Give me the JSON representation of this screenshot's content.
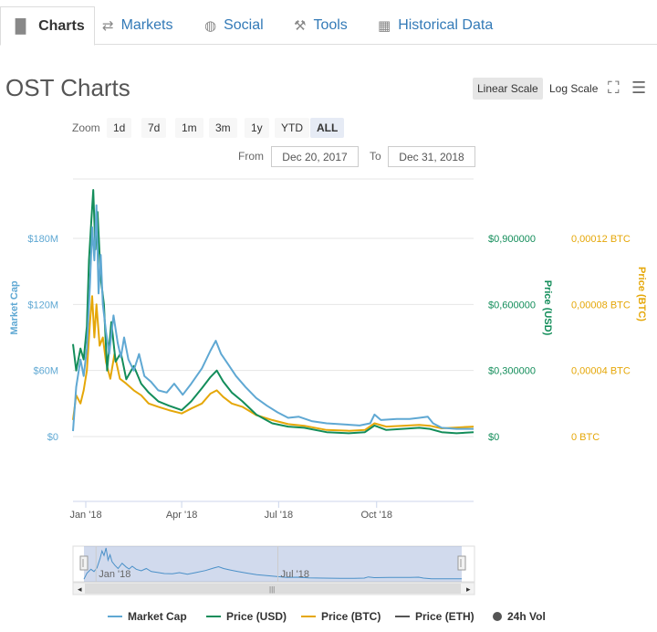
{
  "tabs": [
    {
      "label": "Charts",
      "icon": "bar-chart-icon"
    },
    {
      "label": "Markets",
      "icon": "exchange-icon"
    },
    {
      "label": "Social",
      "icon": "globe-icon"
    },
    {
      "label": "Tools",
      "icon": "wrench-icon"
    },
    {
      "label": "Historical Data",
      "icon": "calendar-icon"
    }
  ],
  "page_title": "OST Charts",
  "scale": {
    "linear": "Linear Scale",
    "log": "Log Scale",
    "selected": "linear"
  },
  "zoom": {
    "label": "Zoom",
    "options": [
      "1d",
      "7d",
      "1m",
      "3m",
      "1y",
      "YTD",
      "ALL"
    ],
    "selected": "ALL"
  },
  "range": {
    "from_label": "From",
    "from": "Dec 20, 2017",
    "to_label": "To",
    "to": "Dec 31, 2018"
  },
  "colors": {
    "market_cap": "#5fa8d3",
    "price_usd": "#138d5a",
    "price_btc": "#e5a708",
    "price_eth": "#555555",
    "vol": "#555555"
  },
  "chart_data": {
    "type": "line",
    "x_start": "2017-12-20",
    "x_end": "2018-12-31",
    "x_ticks": [
      "Jan '18",
      "Apr '18",
      "Jul '18",
      "Oct '18"
    ],
    "axes": {
      "market_cap": {
        "label": "Market Cap",
        "ticks": [
          "$0",
          "$60M",
          "$120M",
          "$180M"
        ],
        "range": [
          0,
          180
        ]
      },
      "price_usd": {
        "label": "Price (USD)",
        "ticks": [
          "$0",
          "$0,300000",
          "$0,600000",
          "$0,900000"
        ],
        "range": [
          0,
          0.9
        ]
      },
      "price_btc": {
        "label": "Price (BTC)",
        "ticks": [
          "0 BTC",
          "0,00004 BTC",
          "0,00008 BTC",
          "0,00012 BTC"
        ],
        "range": [
          0,
          0.00012
        ]
      }
    },
    "grid": true,
    "series": [
      {
        "name": "Market Cap",
        "axis": "market_cap",
        "points": [
          [
            "2017-12-20",
            5
          ],
          [
            "2017-12-23",
            45
          ],
          [
            "2017-12-27",
            70
          ],
          [
            "2017-12-30",
            55
          ],
          [
            "2018-01-02",
            80
          ],
          [
            "2018-01-05",
            140
          ],
          [
            "2018-01-07",
            190
          ],
          [
            "2018-01-09",
            160
          ],
          [
            "2018-01-11",
            210
          ],
          [
            "2018-01-13",
            130
          ],
          [
            "2018-01-15",
            165
          ],
          [
            "2018-01-17",
            120
          ],
          [
            "2018-01-20",
            95
          ],
          [
            "2018-01-23",
            75
          ],
          [
            "2018-01-27",
            110
          ],
          [
            "2018-01-31",
            85
          ],
          [
            "2018-02-03",
            72
          ],
          [
            "2018-02-06",
            90
          ],
          [
            "2018-02-10",
            70
          ],
          [
            "2018-02-15",
            60
          ],
          [
            "2018-02-20",
            75
          ],
          [
            "2018-02-25",
            55
          ],
          [
            "2018-03-03",
            50
          ],
          [
            "2018-03-10",
            42
          ],
          [
            "2018-03-18",
            40
          ],
          [
            "2018-03-25",
            48
          ],
          [
            "2018-04-02",
            38
          ],
          [
            "2018-04-10",
            48
          ],
          [
            "2018-04-20",
            62
          ],
          [
            "2018-04-28",
            78
          ],
          [
            "2018-05-03",
            87
          ],
          [
            "2018-05-08",
            75
          ],
          [
            "2018-05-15",
            65
          ],
          [
            "2018-05-22",
            55
          ],
          [
            "2018-05-31",
            45
          ],
          [
            "2018-06-10",
            35
          ],
          [
            "2018-06-20",
            28
          ],
          [
            "2018-06-30",
            22
          ],
          [
            "2018-07-10",
            17
          ],
          [
            "2018-07-20",
            18
          ],
          [
            "2018-08-01",
            14
          ],
          [
            "2018-08-15",
            12
          ],
          [
            "2018-09-01",
            11
          ],
          [
            "2018-09-15",
            10
          ],
          [
            "2018-09-25",
            12
          ],
          [
            "2018-09-29",
            20
          ],
          [
            "2018-10-05",
            15
          ],
          [
            "2018-10-20",
            16
          ],
          [
            "2018-11-01",
            16
          ],
          [
            "2018-11-10",
            17
          ],
          [
            "2018-11-18",
            18
          ],
          [
            "2018-11-23",
            12
          ],
          [
            "2018-12-01",
            8
          ],
          [
            "2018-12-15",
            7
          ],
          [
            "2018-12-31",
            7
          ]
        ]
      },
      {
        "name": "Price (USD)",
        "axis": "price_usd",
        "points": [
          [
            "2017-12-20",
            0.42
          ],
          [
            "2017-12-23",
            0.3
          ],
          [
            "2017-12-27",
            0.4
          ],
          [
            "2017-12-30",
            0.35
          ],
          [
            "2018-01-02",
            0.5
          ],
          [
            "2018-01-04",
            0.8
          ],
          [
            "2018-01-06",
            0.96
          ],
          [
            "2018-01-08",
            1.12
          ],
          [
            "2018-01-10",
            0.85
          ],
          [
            "2018-01-12",
            1.02
          ],
          [
            "2018-01-15",
            0.72
          ],
          [
            "2018-01-18",
            0.6
          ],
          [
            "2018-01-21",
            0.3
          ],
          [
            "2018-01-25",
            0.52
          ],
          [
            "2018-01-29",
            0.34
          ],
          [
            "2018-02-03",
            0.38
          ],
          [
            "2018-02-08",
            0.26
          ],
          [
            "2018-02-15",
            0.32
          ],
          [
            "2018-02-22",
            0.24
          ],
          [
            "2018-03-01",
            0.2
          ],
          [
            "2018-03-10",
            0.16
          ],
          [
            "2018-03-20",
            0.14
          ],
          [
            "2018-04-01",
            0.12
          ],
          [
            "2018-04-10",
            0.16
          ],
          [
            "2018-04-20",
            0.22
          ],
          [
            "2018-04-28",
            0.27
          ],
          [
            "2018-05-04",
            0.3
          ],
          [
            "2018-05-10",
            0.25
          ],
          [
            "2018-05-18",
            0.2
          ],
          [
            "2018-05-28",
            0.16
          ],
          [
            "2018-06-10",
            0.1
          ],
          [
            "2018-06-25",
            0.06
          ],
          [
            "2018-07-10",
            0.045
          ],
          [
            "2018-07-25",
            0.04
          ],
          [
            "2018-08-15",
            0.02
          ],
          [
            "2018-09-05",
            0.015
          ],
          [
            "2018-09-20",
            0.02
          ],
          [
            "2018-09-29",
            0.05
          ],
          [
            "2018-10-10",
            0.03
          ],
          [
            "2018-10-25",
            0.035
          ],
          [
            "2018-11-10",
            0.04
          ],
          [
            "2018-11-20",
            0.035
          ],
          [
            "2018-12-01",
            0.02
          ],
          [
            "2018-12-15",
            0.015
          ],
          [
            "2018-12-31",
            0.02
          ]
        ]
      },
      {
        "name": "Price (BTC)",
        "axis": "price_btc",
        "points": [
          [
            "2017-12-20",
            1e-05
          ],
          [
            "2017-12-23",
            2.5e-05
          ],
          [
            "2017-12-27",
            2e-05
          ],
          [
            "2017-12-30",
            2.8e-05
          ],
          [
            "2018-01-02",
            4e-05
          ],
          [
            "2018-01-05",
            7e-05
          ],
          [
            "2018-01-07",
            8.5e-05
          ],
          [
            "2018-01-09",
            6e-05
          ],
          [
            "2018-01-11",
            8e-05
          ],
          [
            "2018-01-14",
            5.5e-05
          ],
          [
            "2018-01-17",
            6e-05
          ],
          [
            "2018-01-20",
            4.5e-05
          ],
          [
            "2018-01-24",
            3.5e-05
          ],
          [
            "2018-01-28",
            5e-05
          ],
          [
            "2018-02-02",
            3.5e-05
          ],
          [
            "2018-02-08",
            3.2e-05
          ],
          [
            "2018-02-15",
            2.8e-05
          ],
          [
            "2018-02-22",
            2.5e-05
          ],
          [
            "2018-03-01",
            2e-05
          ],
          [
            "2018-03-10",
            1.8e-05
          ],
          [
            "2018-03-20",
            1.6e-05
          ],
          [
            "2018-04-01",
            1.4e-05
          ],
          [
            "2018-04-10",
            1.7e-05
          ],
          [
            "2018-04-20",
            2e-05
          ],
          [
            "2018-04-28",
            2.6e-05
          ],
          [
            "2018-05-04",
            2.8e-05
          ],
          [
            "2018-05-10",
            2.4e-05
          ],
          [
            "2018-05-18",
            2e-05
          ],
          [
            "2018-05-28",
            1.8e-05
          ],
          [
            "2018-06-10",
            1.3e-05
          ],
          [
            "2018-06-25",
            1e-05
          ],
          [
            "2018-07-10",
            7.5e-06
          ],
          [
            "2018-07-25",
            6.5e-06
          ],
          [
            "2018-08-15",
            4e-06
          ],
          [
            "2018-09-05",
            3.5e-06
          ],
          [
            "2018-09-20",
            4e-06
          ],
          [
            "2018-09-29",
            8e-06
          ],
          [
            "2018-10-10",
            6e-06
          ],
          [
            "2018-10-25",
            6.5e-06
          ],
          [
            "2018-11-10",
            7e-06
          ],
          [
            "2018-11-20",
            6.5e-06
          ],
          [
            "2018-12-01",
            5e-06
          ],
          [
            "2018-12-15",
            5.5e-06
          ],
          [
            "2018-12-31",
            6e-06
          ]
        ]
      }
    ]
  },
  "navigator": {
    "labels": [
      "Jan '18",
      "Jul '18"
    ]
  },
  "legend": [
    {
      "label": "Market Cap",
      "color": "#5fa8d3",
      "kind": "line"
    },
    {
      "label": "Price (USD)",
      "color": "#138d5a",
      "kind": "line"
    },
    {
      "label": "Price (BTC)",
      "color": "#e5a708",
      "kind": "line"
    },
    {
      "label": "Price (ETH)",
      "color": "#555555",
      "kind": "line"
    },
    {
      "label": "24h Vol",
      "color": "#555555",
      "kind": "dot"
    }
  ]
}
